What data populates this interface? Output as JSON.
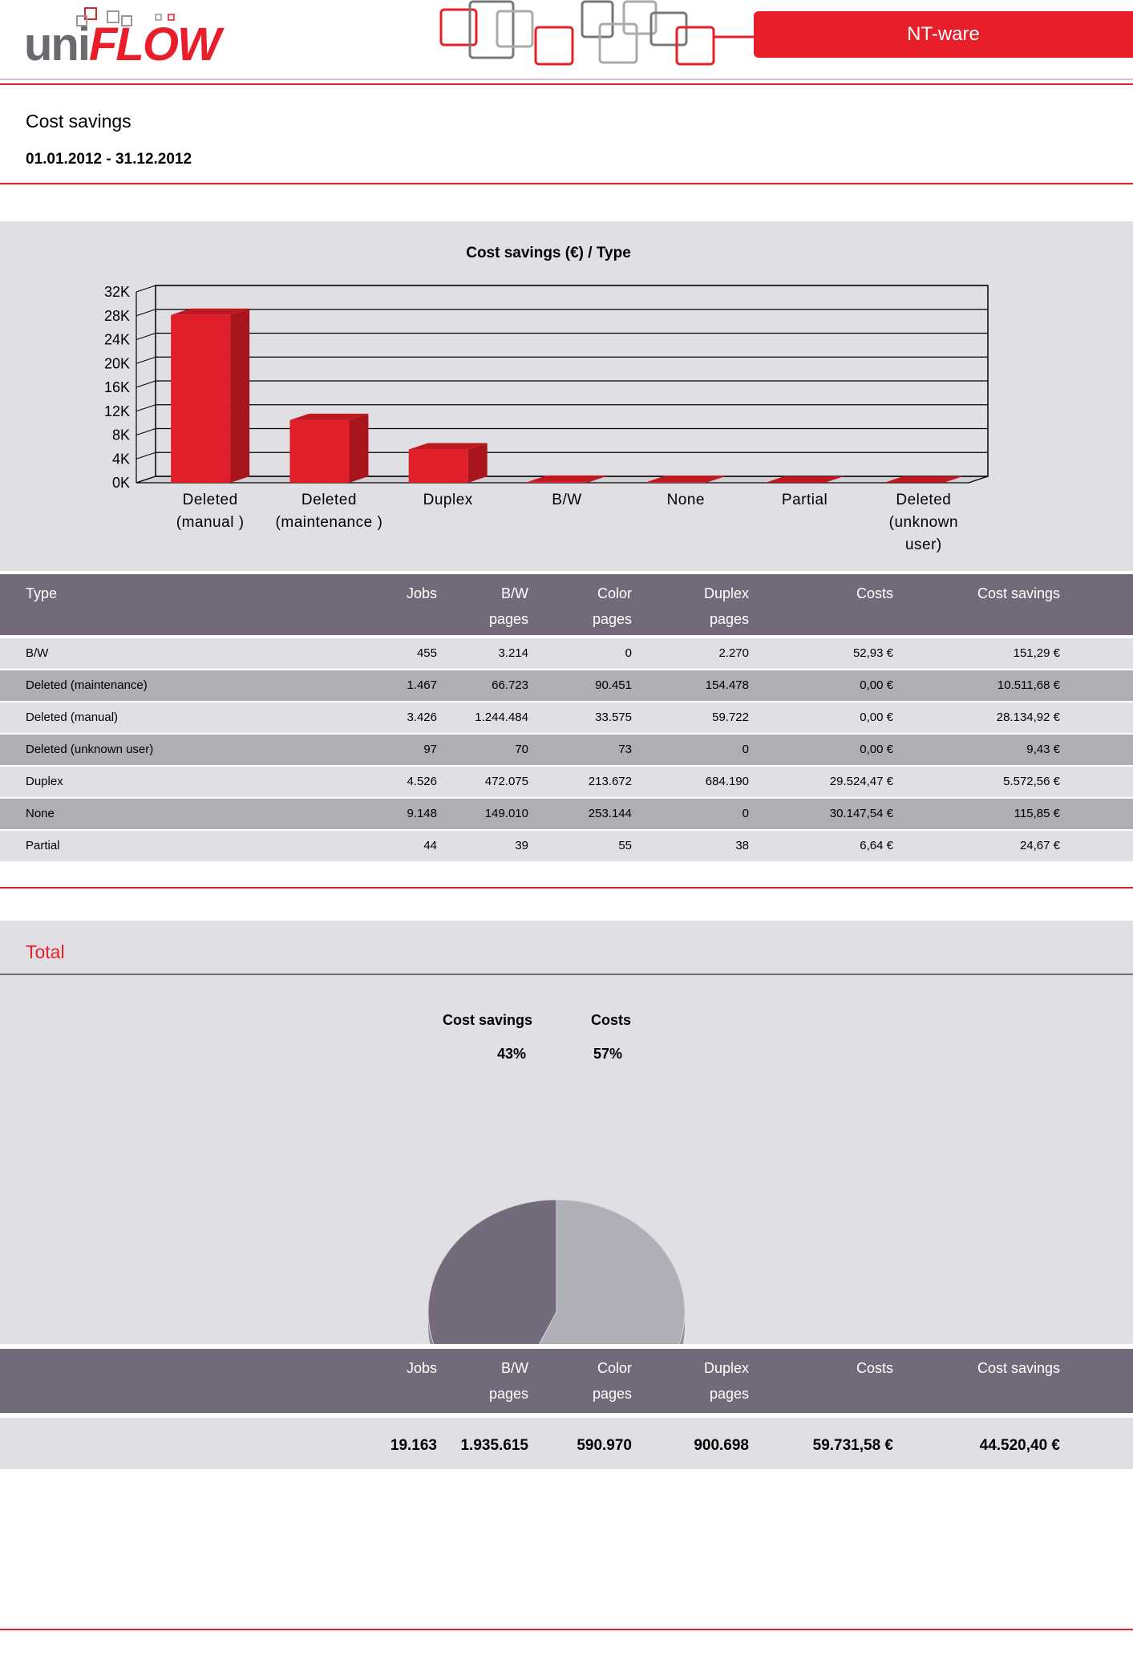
{
  "header": {
    "logo_uni": "uni",
    "logo_flow": "FLOW",
    "brand": "NT-ware"
  },
  "report": {
    "title": "Cost savings",
    "date_range": "01.01.2012  -  31.12.2012"
  },
  "chart_data": [
    {
      "type": "bar",
      "title": "Cost savings (€) / Type",
      "categories": [
        "Deleted (manual )",
        "Deleted (maintenance )",
        "Duplex",
        "B/W",
        "None",
        "Partial",
        "Deleted (unknown user)"
      ],
      "category_lines": [
        [
          "Deleted",
          "(manual )"
        ],
        [
          "Deleted",
          "(maintenance )"
        ],
        [
          "Duplex"
        ],
        [
          "B/W"
        ],
        [
          "None"
        ],
        [
          "Partial"
        ],
        [
          "Deleted",
          "(unknown",
          "user)"
        ]
      ],
      "values": [
        28134.92,
        10511.68,
        5572.56,
        151.29,
        115.85,
        24.67,
        9.43
      ],
      "ylim": [
        0,
        32000
      ],
      "yticks": [
        "0K",
        "4K",
        "8K",
        "12K",
        "16K",
        "20K",
        "24K",
        "28K",
        "32K"
      ],
      "grid": true,
      "color": "#e01f2a"
    },
    {
      "type": "pie",
      "labels": [
        "Cost savings",
        "Costs"
      ],
      "values": [
        43,
        57
      ],
      "value_labels": [
        "43%",
        "57%"
      ],
      "colors": [
        "#736a7b",
        "#b0aeb6"
      ]
    }
  ],
  "table": {
    "headers": {
      "type": "Type",
      "jobs": "Jobs",
      "bw": "B/W",
      "bw2": "pages",
      "color": "Color",
      "color2": "pages",
      "duplex": "Duplex",
      "duplex2": "pages",
      "costs": "Costs",
      "savings": "Cost savings"
    },
    "rows": [
      {
        "type": "B/W",
        "jobs": "455",
        "bw": "3.214",
        "color": "0",
        "duplex": "2.270",
        "costs": "52,93 €",
        "savings": "151,29 €"
      },
      {
        "type": "Deleted (maintenance)",
        "jobs": "1.467",
        "bw": "66.723",
        "color": "90.451",
        "duplex": "154.478",
        "costs": "0,00 €",
        "savings": "10.511,68 €"
      },
      {
        "type": "Deleted (manual)",
        "jobs": "3.426",
        "bw": "1.244.484",
        "color": "33.575",
        "duplex": "59.722",
        "costs": "0,00 €",
        "savings": "28.134,92 €"
      },
      {
        "type": "Deleted (unknown user)",
        "jobs": "97",
        "bw": "70",
        "color": "73",
        "duplex": "0",
        "costs": "0,00 €",
        "savings": "9,43 €"
      },
      {
        "type": "Duplex",
        "jobs": "4.526",
        "bw": "472.075",
        "color": "213.672",
        "duplex": "684.190",
        "costs": "29.524,47 €",
        "savings": "5.572,56 €"
      },
      {
        "type": "None",
        "jobs": "9.148",
        "bw": "149.010",
        "color": "253.144",
        "duplex": "0",
        "costs": "30.147,54 €",
        "savings": "115,85 €"
      },
      {
        "type": "Partial",
        "jobs": "44",
        "bw": "39",
        "color": "55",
        "duplex": "38",
        "costs": "6,64 €",
        "savings": "24,67 €"
      }
    ]
  },
  "total": {
    "title": "Total",
    "headers": {
      "jobs": "Jobs",
      "bw": "B/W",
      "bw2": "pages",
      "color": "Color",
      "color2": "pages",
      "duplex": "Duplex",
      "duplex2": "pages",
      "costs": "Costs",
      "savings": "Cost savings"
    },
    "values": {
      "jobs": "19.163",
      "bw": "1.935.615",
      "color": "590.970",
      "duplex": "900.698",
      "costs": "59.731,58 €",
      "savings": "44.520,40 €"
    }
  }
}
